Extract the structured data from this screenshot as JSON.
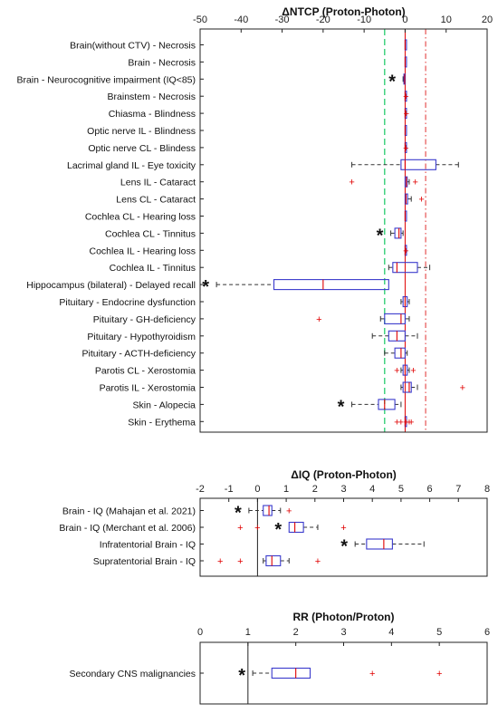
{
  "chart_data": [
    {
      "type": "box",
      "title": "ΔNTCP (Proton-Photon)",
      "xlim": [
        -50,
        20
      ],
      "xticks": [
        "-50",
        "-40",
        "-30",
        "-20",
        "-10",
        "0",
        "10",
        "20"
      ],
      "reference_lines": {
        "zero": 0,
        "green_dashed": -5,
        "red_dashdot": 5
      },
      "colors": {
        "box": "#3a3acc",
        "median": "#e00000",
        "outlier": "#e00000",
        "green": "#36d17a",
        "ref_red": "#e03030"
      },
      "categories": [
        "Brain(without CTV) - Necrosis",
        "Brain - Necrosis",
        "Brain - Neurocognitive impairment (IQ<85)",
        "Brainstem - Necrosis",
        "Chiasma - Blindness",
        "Optic nerve IL - Blindness",
        "Optic nerve CL - Blindess",
        "Lacrimal gland IL - Eye toxicity",
        "Lens IL - Cataract",
        "Lens CL - Cataract",
        "Cochlea CL - Hearing loss",
        "Cochlea CL - Tinnitus",
        "Cochlea IL - Hearing loss",
        "Cochlea IL - Tinnitus",
        "Hippocampus (bilateral) - Delayed recall",
        "Pituitary - Endocrine dysfunction",
        "Pituitary - GH-deficiency",
        "Pituitary - Hypothyroidism",
        "Pituitary - ACTH-deficiency",
        "Parotis CL - Xerostomia",
        "Parotis IL - Xerostomia",
        "Skin -  Alopecia",
        "Skin - Erythema"
      ],
      "boxes": [
        {
          "min": 0,
          "q1": 0,
          "median": 0,
          "q3": 0,
          "max": 0,
          "outliers": [],
          "significant": false
        },
        {
          "min": 0,
          "q1": 0,
          "median": 0,
          "q3": 0,
          "max": 0,
          "outliers": [],
          "significant": false
        },
        {
          "min": -0.5,
          "q1": -0.3,
          "median": -0.1,
          "q3": 0,
          "max": 0,
          "outliers": [],
          "significant": true
        },
        {
          "min": 0,
          "q1": 0,
          "median": 0,
          "q3": 0,
          "max": 0,
          "outliers": [
            0.2
          ],
          "significant": false
        },
        {
          "min": 0,
          "q1": 0,
          "median": 0,
          "q3": 0,
          "max": 0.1,
          "outliers": [
            0.3
          ],
          "significant": false
        },
        {
          "min": 0,
          "q1": 0,
          "median": 0,
          "q3": 0.1,
          "max": 0.1,
          "outliers": [],
          "significant": false
        },
        {
          "min": 0,
          "q1": 0,
          "median": 0,
          "q3": 0,
          "max": 0.1,
          "outliers": [
            0.2
          ],
          "significant": false
        },
        {
          "min": -13,
          "q1": -1,
          "median": 0,
          "q3": 7.5,
          "max": 13,
          "outliers": [],
          "significant": false
        },
        {
          "min": 0,
          "q1": 0,
          "median": 0.3,
          "q3": 0.5,
          "max": 1,
          "outliers": [
            -13,
            2.5
          ],
          "significant": false
        },
        {
          "min": 0,
          "q1": 0,
          "median": 0.2,
          "q3": 0.6,
          "max": 1.5,
          "outliers": [
            4
          ],
          "significant": false
        },
        {
          "min": 0,
          "q1": 0,
          "median": 0,
          "q3": 0,
          "max": 0,
          "outliers": [],
          "significant": false
        },
        {
          "min": -3.5,
          "q1": -2.5,
          "median": -1.5,
          "q3": -1,
          "max": -0.5,
          "outliers": [],
          "significant": true
        },
        {
          "min": 0,
          "q1": 0,
          "median": 0,
          "q3": 0,
          "max": 0,
          "outliers": [
            0.2
          ],
          "significant": false
        },
        {
          "min": -4,
          "q1": -3,
          "median": -2,
          "q3": 3,
          "max": 6,
          "outliers": [],
          "significant": false
        },
        {
          "min": -46,
          "q1": -32,
          "median": -20,
          "q3": -4,
          "max": -4,
          "outliers": [],
          "significant": true
        },
        {
          "min": -1,
          "q1": -0.5,
          "median": 0,
          "q3": 0.5,
          "max": 1,
          "outliers": [],
          "significant": false
        },
        {
          "min": -6,
          "q1": -5,
          "median": -1,
          "q3": 0,
          "max": 1,
          "outliers": [
            -21
          ],
          "significant": false
        },
        {
          "min": -8,
          "q1": -4,
          "median": -2,
          "q3": 0,
          "max": 3,
          "outliers": [],
          "significant": false
        },
        {
          "min": -5,
          "q1": -2.5,
          "median": -1,
          "q3": 0,
          "max": 0.5,
          "outliers": [],
          "significant": false
        },
        {
          "min": -1,
          "q1": -0.5,
          "median": 0,
          "q3": 0.5,
          "max": 1,
          "outliers": [
            -2,
            2
          ],
          "significant": false
        },
        {
          "min": -1,
          "q1": -0.5,
          "median": 1,
          "q3": 1.5,
          "max": 3,
          "outliers": [
            14
          ],
          "significant": false
        },
        {
          "min": -13,
          "q1": -6.5,
          "median": -5,
          "q3": -2.5,
          "max": -1,
          "outliers": [],
          "significant": true
        },
        {
          "min": 0,
          "q1": 0,
          "median": 0,
          "q3": 0,
          "max": 0,
          "outliers": [
            -2,
            -1,
            0.3,
            1,
            1.5
          ],
          "significant": false
        }
      ]
    },
    {
      "type": "box",
      "title": "ΔIQ (Proton-Photon)",
      "xlim": [
        -2,
        8
      ],
      "xticks": [
        "-2",
        "-1",
        "0",
        "1",
        "2",
        "3",
        "4",
        "5",
        "6",
        "7",
        "8"
      ],
      "reference_lines": {
        "zero": 0
      },
      "colors": {
        "box": "#3a3acc",
        "median": "#e00000",
        "outlier": "#e00000"
      },
      "categories": [
        "Brain - IQ (Mahajan et al. 2021)",
        "Brain - IQ (Merchant et al. 2006)",
        "Infratentorial Brain - IQ",
        "Supratentorial Brain - IQ"
      ],
      "boxes": [
        {
          "min": -0.3,
          "q1": 0.2,
          "median": 0.4,
          "q3": 0.5,
          "max": 0.8,
          "outliers": [
            1.1
          ],
          "significant": true
        },
        {
          "min": 1.1,
          "q1": 1.1,
          "median": 1.3,
          "q3": 1.6,
          "max": 2.1,
          "outliers": [
            -0.6,
            0,
            3
          ],
          "significant": true
        },
        {
          "min": 3.4,
          "q1": 3.8,
          "median": 4.4,
          "q3": 4.7,
          "max": 5.8,
          "outliers": [],
          "significant": true
        },
        {
          "min": 0.2,
          "q1": 0.3,
          "median": 0.5,
          "q3": 0.8,
          "max": 1.1,
          "outliers": [
            -1.3,
            -0.6,
            2.1
          ],
          "significant": false
        }
      ]
    },
    {
      "type": "box",
      "title": "RR (Photon/Proton)",
      "xlim": [
        0,
        6
      ],
      "xticks": [
        "0",
        "1",
        "2",
        "3",
        "4",
        "5",
        "6"
      ],
      "reference_lines": {
        "one": 1
      },
      "colors": {
        "box": "#3a3acc",
        "median": "#e00000",
        "outlier": "#e00000"
      },
      "categories": [
        "Secondary CNS malignancies"
      ],
      "boxes": [
        {
          "min": 1.1,
          "q1": 1.5,
          "median": 2.0,
          "q3": 2.3,
          "max": 2.3,
          "outliers": [
            3.6,
            5.0
          ],
          "significant": true
        }
      ]
    }
  ]
}
